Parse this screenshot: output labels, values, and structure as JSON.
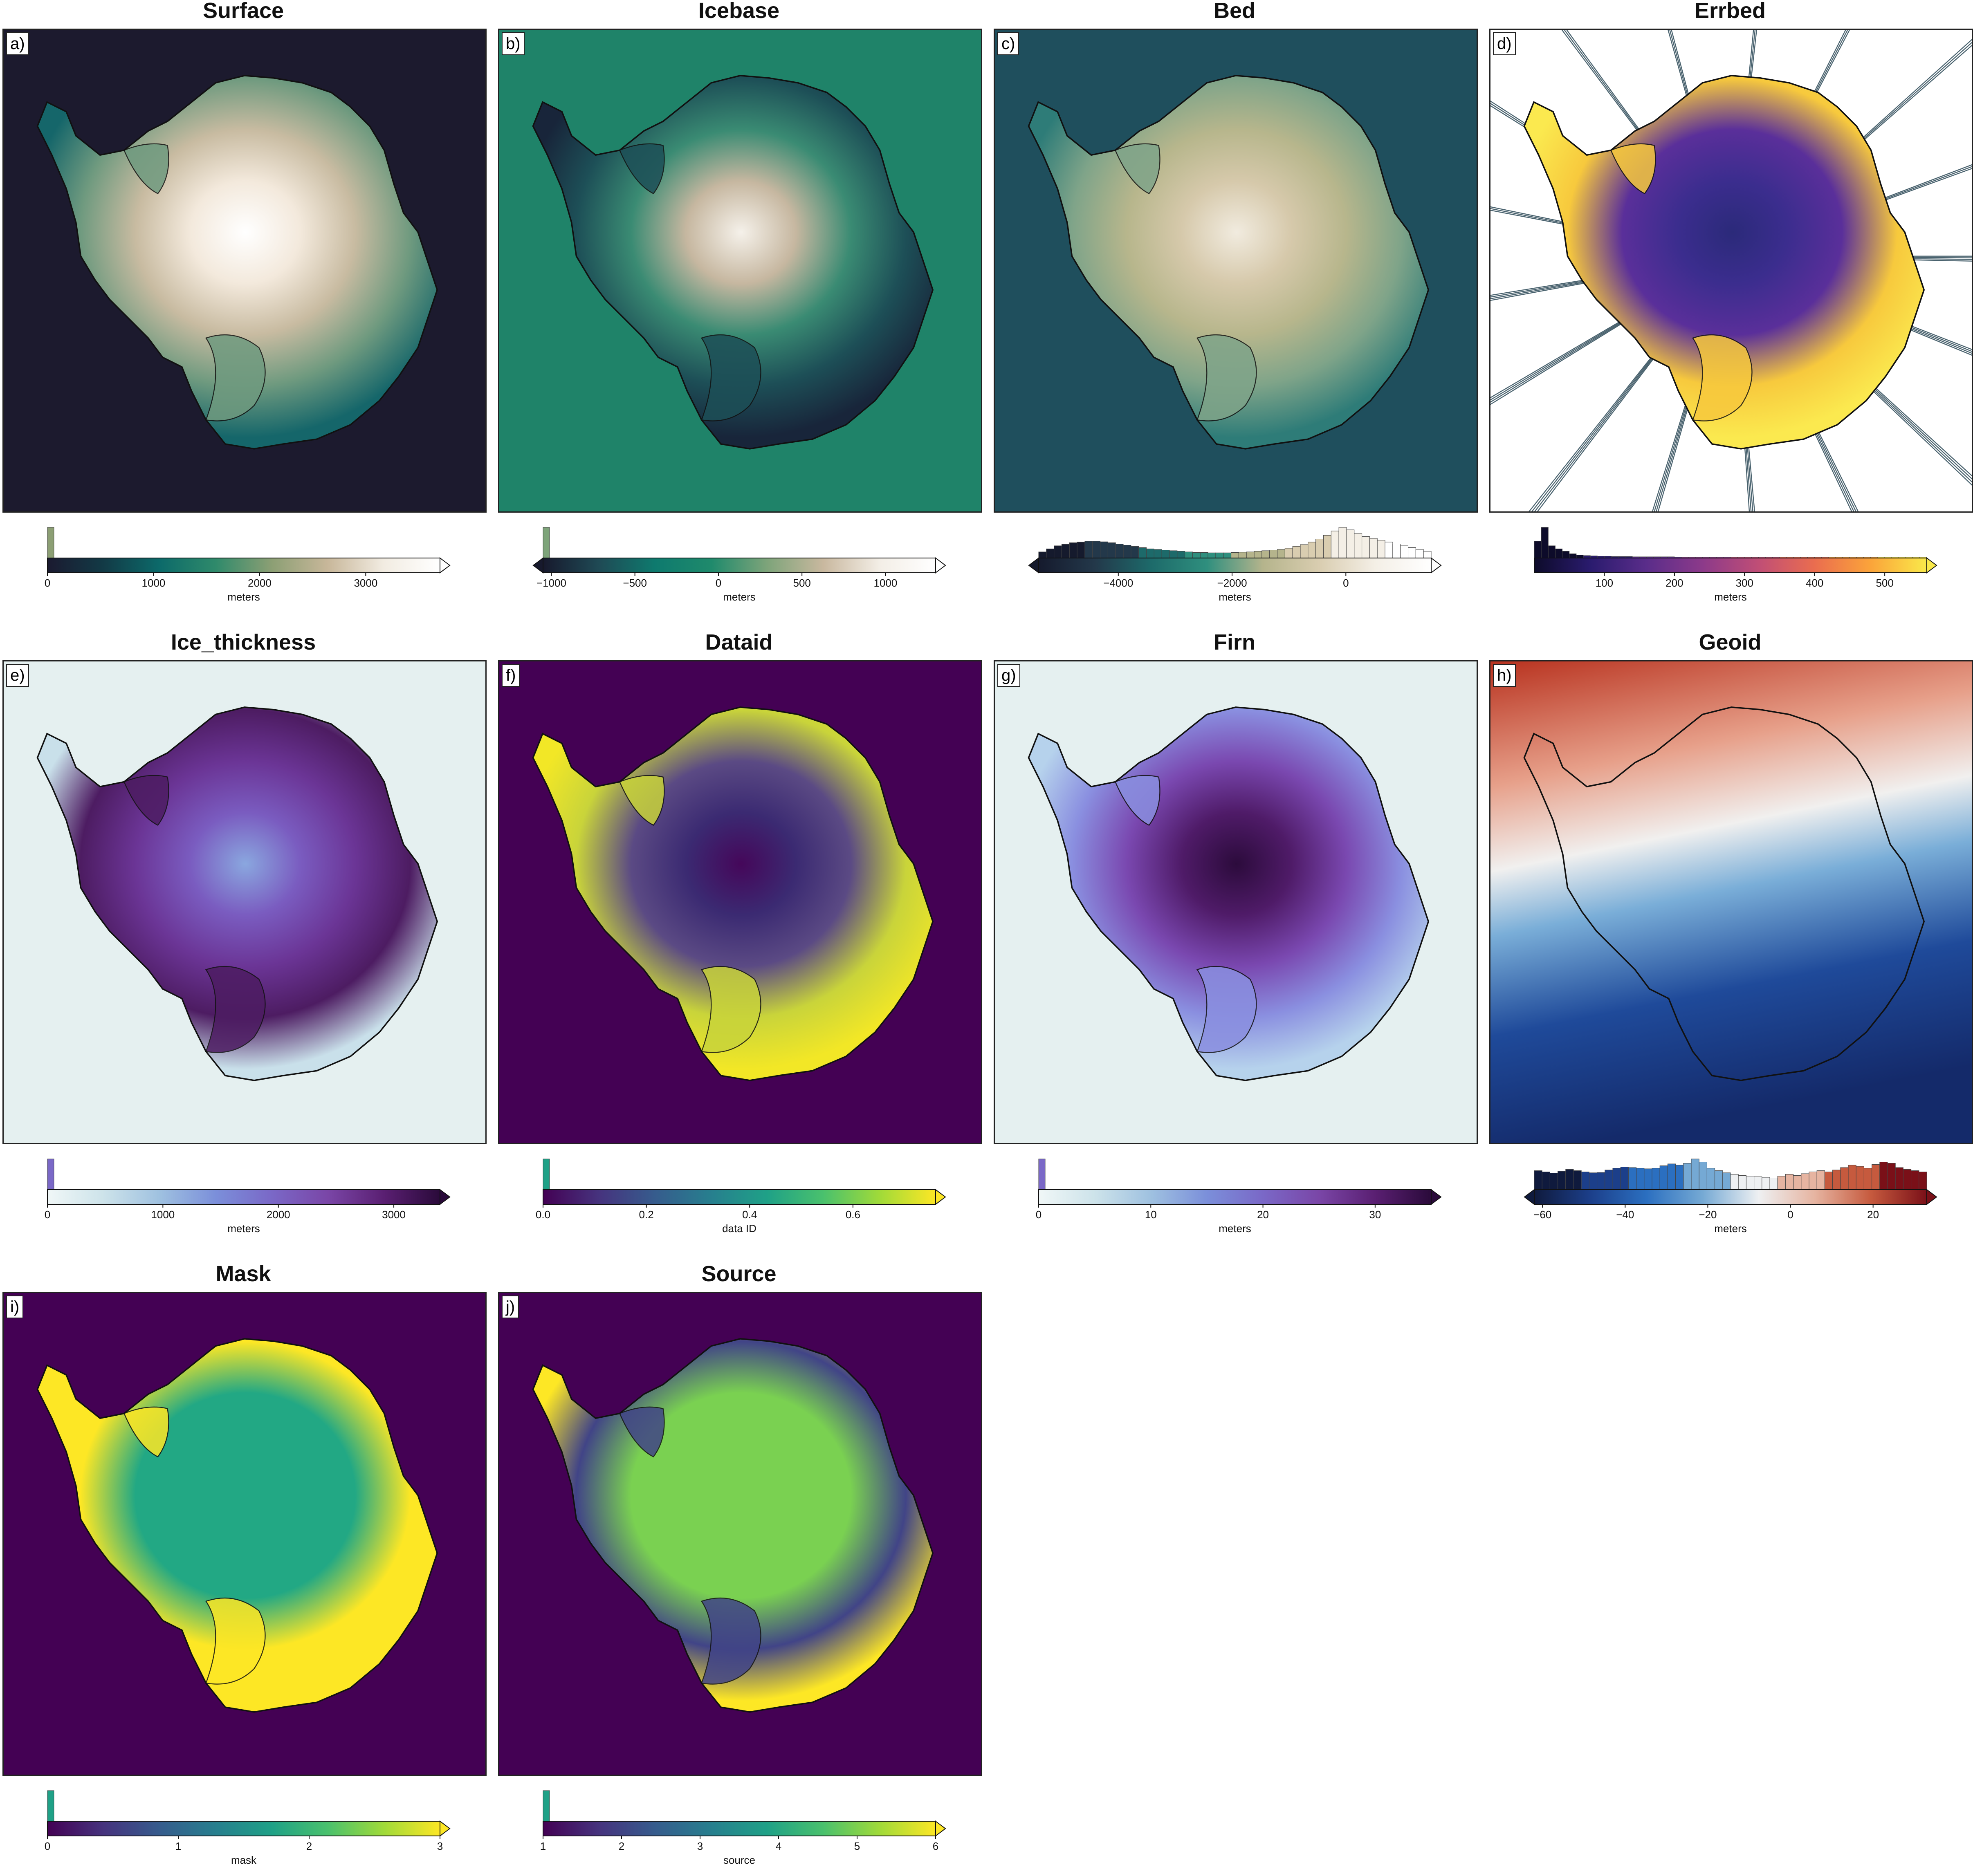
{
  "panels": [
    {
      "letter": "a)",
      "title": "Surface",
      "unit": "meters",
      "ticks": [
        "0",
        "1000",
        "2000",
        "3000"
      ],
      "tick_values": [
        0,
        1000,
        2000,
        3000
      ],
      "range": [
        0,
        3700
      ],
      "extend": "right",
      "colors": [
        "#1b1a30",
        "#123a46",
        "#0c6a6a",
        "#2f8a6b",
        "#8c9f74",
        "#c8b79a",
        "#f2ece2",
        "#ffffff"
      ],
      "ocean": "#1c1a2e",
      "ice": [
        "#ffffff",
        "#f3e9dc",
        "#c8bba1",
        "#6f9a7f",
        "#15666a"
      ],
      "hist": [
        100
      ]
    },
    {
      "letter": "b)",
      "title": "Icebase",
      "unit": "meters",
      "ticks": [
        "−1000",
        "−500",
        "0",
        "500",
        "1000"
      ],
      "tick_values": [
        -1000,
        -500,
        0,
        500,
        1000
      ],
      "range": [
        -1050,
        1300
      ],
      "extend": "both",
      "colors": [
        "#17192d",
        "#1f4a55",
        "#0e7a6e",
        "#1f8a6c",
        "#7ea47a",
        "#c9b89f",
        "#f3eee6",
        "#ffffff"
      ],
      "ocean": "#1f8369",
      "ice": [
        "#f5f1ea",
        "#c6b7a0",
        "#3a8b73",
        "#1d4f57",
        "#18253a"
      ],
      "hist": [
        100
      ]
    },
    {
      "letter": "c)",
      "title": "Bed",
      "unit": "meters",
      "ticks": [
        "−4000",
        "−2000",
        "0"
      ],
      "tick_values": [
        -4000,
        -2000,
        0
      ],
      "range": [
        -5400,
        1500
      ],
      "extend": "both",
      "colors": [
        "#151a2d",
        "#23384a",
        "#1d6a6a",
        "#2f8f7e",
        "#b5b48c",
        "#d9cdb0",
        "#f4efe6",
        "#ffffff"
      ],
      "ocean": "#1f4f5d",
      "ice": [
        "#f1ebdf",
        "#d6c9ab",
        "#b7b68c",
        "#7fa489",
        "#2e7c78"
      ],
      "hist": [
        20,
        30,
        40,
        45,
        50,
        52,
        55,
        55,
        53,
        50,
        46,
        42,
        38,
        34,
        30,
        28,
        26,
        24,
        22,
        20,
        18,
        18,
        17,
        17,
        17,
        18,
        19,
        20,
        22,
        24,
        26,
        28,
        32,
        38,
        44,
        52,
        62,
        74,
        88,
        100,
        92,
        80,
        70,
        64,
        58,
        52,
        46,
        40,
        34,
        28,
        22
      ]
    },
    {
      "letter": "d)",
      "title": "Errbed",
      "unit": "meters",
      "ticks": [
        "100",
        "200",
        "300",
        "400",
        "500"
      ],
      "tick_values": [
        100,
        200,
        300,
        400,
        500
      ],
      "range": [
        0,
        560
      ],
      "extend": "right",
      "colors": [
        "#0d0b2a",
        "#2a1b6e",
        "#5a2d8a",
        "#8c3a8a",
        "#c04e76",
        "#ea6d4f",
        "#fba43a",
        "#f9e94a"
      ],
      "ocean": "#ffffff",
      "ice": [
        "#2b2a7a",
        "#3b2d8e",
        "#5a2f9a",
        "#f7c93d",
        "#fbe94f"
      ],
      "hist": [
        55,
        100,
        40,
        30,
        22,
        14,
        10,
        8,
        7,
        6,
        6,
        5,
        5,
        5,
        4,
        4,
        4,
        4,
        4,
        4,
        3,
        3,
        3,
        3,
        3,
        3,
        3,
        3,
        3,
        3,
        3,
        3,
        3,
        3,
        3,
        3,
        3,
        3,
        3,
        3,
        3,
        3,
        3,
        3,
        3,
        3,
        3,
        3,
        3,
        3,
        3,
        3,
        3,
        3,
        3,
        3
      ]
    },
    {
      "letter": "e)",
      "title": "Ice_thickness",
      "unit": "meters",
      "ticks": [
        "0",
        "1000",
        "2000",
        "3000"
      ],
      "tick_values": [
        0,
        1000,
        2000,
        3000
      ],
      "range": [
        0,
        3400
      ],
      "extend": "right",
      "colors": [
        "#f0f7f7",
        "#cde3ea",
        "#9fc1e0",
        "#7b8fda",
        "#7a68c7",
        "#7a46a7",
        "#5a1f72",
        "#2a0a3a"
      ],
      "ocean": "#e5f0f0",
      "ice": [
        "#8aa7df",
        "#7a5cc0",
        "#6b3596",
        "#4d1c62",
        "#c9e0ea"
      ],
      "hist": [
        100
      ]
    },
    {
      "letter": "f)",
      "title": "Dataid",
      "unit": "data ID",
      "ticks": [
        "0.0",
        "0.2",
        "0.4",
        "0.6"
      ],
      "tick_values": [
        0,
        0.2,
        0.4,
        0.6
      ],
      "range": [
        0,
        0.76
      ],
      "extend": "right",
      "colors": [
        "#440154",
        "#46337e",
        "#365c8d",
        "#277f8e",
        "#1fa187",
        "#4ac16d",
        "#a0da39",
        "#fde725"
      ],
      "ocean": "#440154",
      "ice": [
        "#45075a",
        "#3b2a72",
        "#5b4a84",
        "#c9d43a",
        "#f2e726"
      ],
      "hist": [
        100
      ]
    },
    {
      "letter": "g)",
      "title": "Firn",
      "unit": "meters",
      "ticks": [
        "0",
        "10",
        "20",
        "30"
      ],
      "tick_values": [
        0,
        10,
        20,
        30
      ],
      "range": [
        0,
        35
      ],
      "extend": "right",
      "colors": [
        "#f0f7f7",
        "#cde3ea",
        "#9fc1e0",
        "#7b8fda",
        "#7a68c7",
        "#7a46a7",
        "#5a1f72",
        "#2a0a3a"
      ],
      "ocean": "#e5f0f0",
      "ice": [
        "#2c0b3c",
        "#4f1b68",
        "#7a48b0",
        "#8a8fe0",
        "#b6d2ec"
      ],
      "hist": [
        100
      ]
    },
    {
      "letter": "h)",
      "title": "Geoid",
      "unit": "meters",
      "ticks": [
        "−60",
        "−40",
        "−20",
        "0",
        "20"
      ],
      "tick_values": [
        -60,
        -40,
        -20,
        0,
        20
      ],
      "range": [
        -62,
        33
      ],
      "extend": "both",
      "colors": [
        "#0f1a3d",
        "#1c3f8a",
        "#2b6fc0",
        "#75a9d4",
        "#eef0f2",
        "#e6b4a1",
        "#c65a3e",
        "#7a1018"
      ],
      "ocean": "#ffffff",
      "ice": [
        "#0d1a3e",
        "#1c3f8a",
        "#78aad6",
        "#f1f0ef",
        "#b2311f"
      ],
      "hist": [
        62,
        58,
        54,
        60,
        66,
        62,
        58,
        55,
        56,
        64,
        70,
        74,
        72,
        70,
        68,
        70,
        78,
        84,
        80,
        86,
        100,
        90,
        70,
        62,
        55,
        50,
        46,
        44,
        42,
        40,
        38,
        44,
        50,
        46,
        52,
        58,
        62,
        58,
        64,
        72,
        80,
        76,
        70,
        82,
        90,
        86,
        72,
        66,
        62,
        58
      ]
    },
    {
      "letter": "i)",
      "title": "Mask",
      "unit": "mask",
      "ticks": [
        "0",
        "1",
        "2",
        "3"
      ],
      "tick_values": [
        0,
        1,
        2,
        3
      ],
      "range": [
        0,
        3
      ],
      "extend": "right",
      "colors": [
        "#440154",
        "#46337e",
        "#365c8d",
        "#277f8e",
        "#1fa187",
        "#4ac16d",
        "#a0da39",
        "#fde725"
      ],
      "ocean": "#440154",
      "ice": [
        "#22a884",
        "#22a884",
        "#22a884",
        "#fde725",
        "#fde725"
      ],
      "hist": [
        100
      ]
    },
    {
      "letter": "j)",
      "title": "Source",
      "unit": "source",
      "ticks": [
        "1",
        "2",
        "3",
        "4",
        "5",
        "6"
      ],
      "tick_values": [
        1,
        2,
        3,
        4,
        5,
        6
      ],
      "range": [
        1,
        6
      ],
      "extend": "right",
      "colors": [
        "#440154",
        "#46337e",
        "#365c8d",
        "#277f8e",
        "#1fa187",
        "#4ac16d",
        "#a0da39",
        "#fde725"
      ],
      "ocean": "#440154",
      "ice": [
        "#7ad151",
        "#7ad151",
        "#7ad151",
        "#414487",
        "#fde725"
      ],
      "hist": [
        100
      ]
    }
  ]
}
